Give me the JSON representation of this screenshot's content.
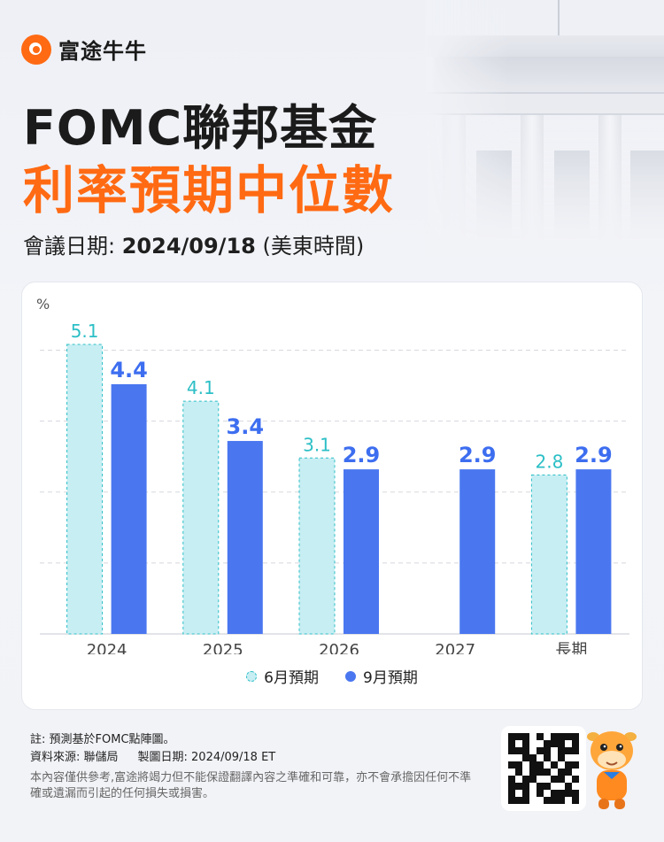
{
  "brand": {
    "name": "富途牛牛",
    "color": "#ff6a13"
  },
  "header": {
    "title_line1": "FOMC聯邦基金",
    "title_line2": "利率預期中位數",
    "meeting_label": "會議日期: ",
    "meeting_date": "2024/09/18",
    "meeting_tz": " (美東時間)"
  },
  "chart_data": {
    "type": "bar",
    "ylabel": "%",
    "ylim": [
      0,
      5.6
    ],
    "grid": true,
    "categories": [
      "2024",
      "2025",
      "2026",
      "2027",
      "長期"
    ],
    "series": [
      {
        "name": "6月預期",
        "values": [
          5.1,
          4.1,
          3.1,
          null,
          2.8
        ],
        "color": "#c7eef3",
        "label_color": "#2cbfc6"
      },
      {
        "name": "9月預期",
        "values": [
          4.4,
          3.4,
          2.9,
          2.9,
          2.9
        ],
        "color": "#4a77f0",
        "label_color": "#3d6ef0"
      }
    ],
    "legend_position": "bottom-center"
  },
  "footer": {
    "note": "註: 預測基於FOMC點陣圖。",
    "source": "資料來源: 聯儲局",
    "made_date": "製圖日期: 2024/09/18 ET",
    "disclaimer": "本內容僅供參考,富途將竭力但不能保證翻譯內容之準確和可靠，亦不會承擔因任何不準確或遺漏而引起的任何損失或損害。"
  },
  "icons": {
    "qr": "qr-code-icon",
    "mascot": "mascot-icon",
    "logo": "futu-logo-icon"
  }
}
